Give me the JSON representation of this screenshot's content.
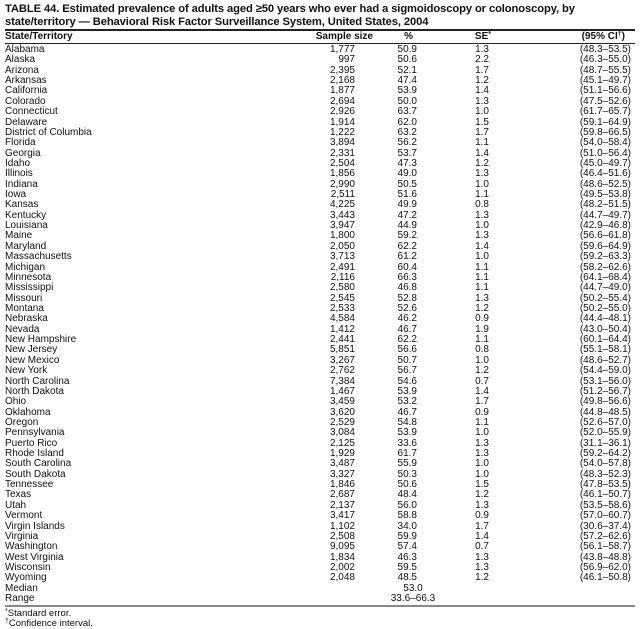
{
  "title": "TABLE 44. Estimated prevalence of adults aged ≥50 years who ever had a sigmoidoscopy or colonoscopy, by state/territory — Behavioral Risk Factor Surveillance System, United States, 2004",
  "headers": {
    "state": "State/Territory",
    "sample_size": "Sample size",
    "percent": "%",
    "se": "SE",
    "se_mark": "*",
    "ci": "(95% CI",
    "ci_mark": "†",
    "ci_close": ")"
  },
  "rows": [
    [
      "Alabama",
      "1,777",
      "50.9",
      "1.3",
      "(48.3–53.5)"
    ],
    [
      "Alaska",
      "997",
      "50.6",
      "2.2",
      "(46.3–55.0)"
    ],
    [
      "Arizona",
      "2,395",
      "52.1",
      "1.7",
      "(48.7–55.5)"
    ],
    [
      "Arkansas",
      "2,168",
      "47.4",
      "1.2",
      "(45.1–49.7)"
    ],
    [
      "California",
      "1,877",
      "53.9",
      "1.4",
      "(51.1–56.6)"
    ],
    [
      "Colorado",
      "2,694",
      "50.0",
      "1.3",
      "(47.5–52.6)"
    ],
    [
      "Connecticut",
      "2,926",
      "63.7",
      "1.0",
      "(61.7–65.7)"
    ],
    [
      "Delaware",
      "1,914",
      "62.0",
      "1.5",
      "(59.1–64.9)"
    ],
    [
      "District of Columbia",
      "1,222",
      "63.2",
      "1.7",
      "(59.8–66.5)"
    ],
    [
      "Florida",
      "3,894",
      "56.2",
      "1.1",
      "(54.0–58.4)"
    ],
    [
      "Georgia",
      "2,331",
      "53.7",
      "1.4",
      "(51.0–56.4)"
    ],
    [
      "Idaho",
      "2,504",
      "47.3",
      "1.2",
      "(45.0–49.7)"
    ],
    [
      "Illinois",
      "1,856",
      "49.0",
      "1.3",
      "(46.4–51.6)"
    ],
    [
      "Indiana",
      "2,990",
      "50.5",
      "1.0",
      "(48.6–52.5)"
    ],
    [
      "Iowa",
      "2,511",
      "51.6",
      "1.1",
      "(49.5–53.8)"
    ],
    [
      "Kansas",
      "4,225",
      "49.9",
      "0.8",
      "(48.2–51.5)"
    ],
    [
      "Kentucky",
      "3,443",
      "47.2",
      "1.3",
      "(44.7–49.7)"
    ],
    [
      "Louisiana",
      "3,947",
      "44.9",
      "1.0",
      "(42.9–46.8)"
    ],
    [
      "Maine",
      "1,800",
      "59.2",
      "1.3",
      "(56.6–61.8)"
    ],
    [
      "Maryland",
      "2,050",
      "62.2",
      "1.4",
      "(59.6–64.9)"
    ],
    [
      "Massachusetts",
      "3,713",
      "61.2",
      "1.0",
      "(59.2–63.3)"
    ],
    [
      "Michigan",
      "2,491",
      "60.4",
      "1.1",
      "(58.2–62.6)"
    ],
    [
      "Minnesota",
      "2,116",
      "66.3",
      "1.1",
      "(64.1–68.4)"
    ],
    [
      "Mississippi",
      "2,580",
      "46.8",
      "1.1",
      "(44.7–49.0)"
    ],
    [
      "Missouri",
      "2,545",
      "52.8",
      "1.3",
      "(50.2–55.4)"
    ],
    [
      "Montana",
      "2,533",
      "52.6",
      "1.2",
      "(50.2–55.0)"
    ],
    [
      "Nebraska",
      "4,584",
      "46.2",
      "0.9",
      "(44.4–48.1)"
    ],
    [
      "Nevada",
      "1,412",
      "46.7",
      "1.9",
      "(43.0–50.4)"
    ],
    [
      "New Hampshire",
      "2,441",
      "62.2",
      "1.1",
      "(60.1–64.4)"
    ],
    [
      "New Jersey",
      "5,851",
      "56.6",
      "0.8",
      "(55.1–58.1)"
    ],
    [
      "New Mexico",
      "3,267",
      "50.7",
      "1.0",
      "(48.6–52.7)"
    ],
    [
      "New York",
      "2,762",
      "56.7",
      "1.2",
      "(54.4–59.0)"
    ],
    [
      "North Carolina",
      "7,384",
      "54.6",
      "0.7",
      "(53.1–56.0)"
    ],
    [
      "North Dakota",
      "1,467",
      "53.9",
      "1.4",
      "(51.2–56.7)"
    ],
    [
      "Ohio",
      "3,459",
      "53.2",
      "1.7",
      "(49.8–56.6)"
    ],
    [
      "Oklahoma",
      "3,620",
      "46.7",
      "0.9",
      "(44.8–48.5)"
    ],
    [
      "Oregon",
      "2,529",
      "54.8",
      "1.1",
      "(52.6–57.0)"
    ],
    [
      "Pennsylvania",
      "3,084",
      "53.9",
      "1.0",
      "(52.0–55.9)"
    ],
    [
      "Puerto Rico",
      "2,125",
      "33.6",
      "1.3",
      "(31.1–36.1)"
    ],
    [
      "Rhode Island",
      "1,929",
      "61.7",
      "1.3",
      "(59.2–64.2)"
    ],
    [
      "South Carolina",
      "3,487",
      "55.9",
      "1.0",
      "(54.0–57.8)"
    ],
    [
      "South Dakota",
      "3,327",
      "50.3",
      "1.0",
      "(48.3–52.3)"
    ],
    [
      "Tennessee",
      "1,846",
      "50.6",
      "1.5",
      "(47.8–53.5)"
    ],
    [
      "Texas",
      "2,687",
      "48.4",
      "1.2",
      "(46.1–50.7)"
    ],
    [
      "Utah",
      "2,137",
      "56.0",
      "1.3",
      "(53.5–58.6)"
    ],
    [
      "Vermont",
      "3,417",
      "58.8",
      "0.9",
      "(57.0–60.7)"
    ],
    [
      "Virgin Islands",
      "1,102",
      "34.0",
      "1.7",
      "(30.6–37.4)"
    ],
    [
      "Virginia",
      "2,508",
      "59.9",
      "1.4",
      "(57.2–62.6)"
    ],
    [
      "Washington",
      "9,095",
      "57.4",
      "0.7",
      "(56.1–58.7)"
    ],
    [
      "West Virginia",
      "1,834",
      "46.3",
      "1.3",
      "(43.8–48.8)"
    ],
    [
      "Wisconsin",
      "2,002",
      "59.5",
      "1.3",
      "(56.9–62.0)"
    ],
    [
      "Wyoming",
      "2,048",
      "48.5",
      "1.2",
      "(46.1–50.8)"
    ]
  ],
  "summary": {
    "median_label": "Median",
    "median": "53.0",
    "range_label": "Range",
    "range": "33.6–66.3"
  },
  "footnotes": {
    "se_mark": "*",
    "se": "Standard error.",
    "ci_mark": "†",
    "ci": "Confidence interval."
  }
}
